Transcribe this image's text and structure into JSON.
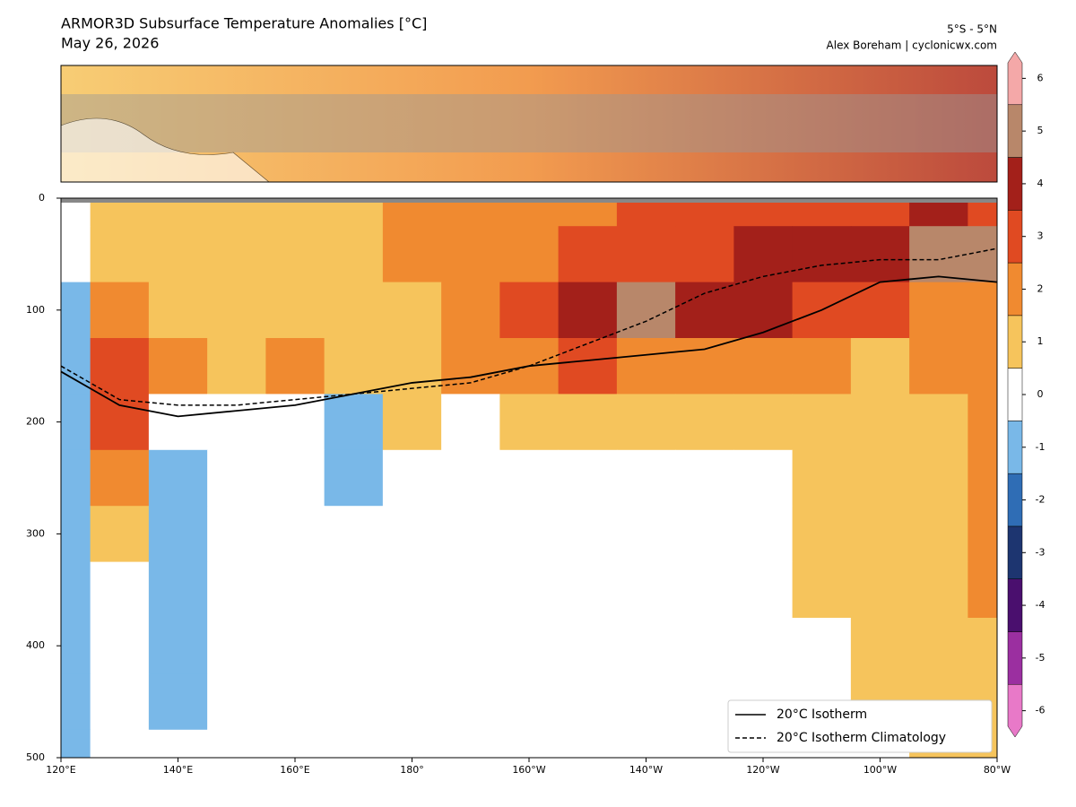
{
  "chart_data": {
    "type": "heatmap",
    "title": "ARMOR3D Subsurface Temperature Anomalies [°C]",
    "subtitle": "May 26, 2026",
    "region": "5°S - 5°N",
    "credit": "Alex Boreham | cyclonicwx.com",
    "x": [
      120,
      130,
      140,
      150,
      160,
      170,
      180,
      190,
      200,
      210,
      220,
      230,
      240,
      250,
      260,
      270,
      280
    ],
    "depths": [
      0,
      50,
      100,
      150,
      200,
      250,
      300,
      350,
      400,
      450,
      500
    ],
    "z": [
      [
        0,
        1,
        1,
        1,
        1,
        1,
        1.5,
        2,
        2,
        2,
        2.5,
        2.5,
        3,
        3,
        3,
        3.5,
        3
      ],
      [
        0,
        1,
        0.5,
        1,
        1,
        1,
        1.5,
        2,
        2,
        2.5,
        3,
        3,
        3.5,
        4,
        4,
        5,
        5
      ],
      [
        -1,
        2,
        1,
        1,
        0.5,
        1,
        1,
        2,
        3,
        4,
        5,
        4,
        3.5,
        3,
        2.5,
        2,
        2
      ],
      [
        -1,
        3,
        2,
        0.5,
        1.5,
        0.5,
        1,
        1.5,
        2,
        2.5,
        2,
        1.5,
        1.5,
        1.5,
        1,
        1.5,
        2
      ],
      [
        -1,
        3,
        -0.5,
        0,
        0,
        -1,
        0.5,
        0,
        1,
        1,
        0.5,
        0.5,
        0.5,
        0.5,
        1,
        1,
        2
      ],
      [
        -1,
        2,
        -1.5,
        0,
        0,
        -1,
        0,
        0,
        0,
        0,
        0,
        0,
        0,
        0.5,
        1,
        1,
        1.5
      ],
      [
        -1,
        1,
        -1.5,
        0,
        0,
        0,
        0,
        0,
        0,
        0,
        0,
        0,
        0,
        1,
        1,
        1,
        1.5
      ],
      [
        -1,
        0,
        -1,
        0,
        0,
        0,
        0,
        0,
        0,
        0,
        0,
        0,
        0,
        1,
        1,
        1,
        1.5
      ],
      [
        -1,
        0,
        -1,
        0,
        0,
        0,
        0,
        0,
        0,
        0,
        0,
        0,
        0,
        0,
        1,
        1,
        1
      ],
      [
        -1,
        0,
        -1,
        0,
        0,
        0,
        0,
        0,
        0,
        0,
        0,
        0,
        0,
        0,
        0.5,
        1,
        1
      ],
      [
        -1,
        0,
        0,
        0,
        0,
        0,
        0,
        0,
        0,
        0,
        0,
        0,
        0,
        0,
        0,
        1,
        1
      ]
    ],
    "series": [
      {
        "name": "20°C Isotherm",
        "color": "#000000",
        "dash": false,
        "values": [
          155,
          185,
          195,
          190,
          185,
          175,
          165,
          160,
          150,
          145,
          140,
          135,
          120,
          100,
          75,
          70,
          75
        ]
      },
      {
        "name": "20°C Isotherm Climatology",
        "color": "#000000",
        "dash": true,
        "values": [
          150,
          180,
          185,
          185,
          180,
          175,
          170,
          165,
          150,
          130,
          110,
          85,
          70,
          60,
          55,
          55,
          45
        ]
      }
    ],
    "xlim": [
      120,
      280
    ],
    "xticks": [
      {
        "value": 120,
        "label": "120°E"
      },
      {
        "value": 140,
        "label": "140°E"
      },
      {
        "value": 160,
        "label": "160°E"
      },
      {
        "value": 180,
        "label": "180°"
      },
      {
        "value": 200,
        "label": "160°W"
      },
      {
        "value": 220,
        "label": "140°W"
      },
      {
        "value": 240,
        "label": "120°W"
      },
      {
        "value": 260,
        "label": "100°W"
      },
      {
        "value": 280,
        "label": "80°W"
      }
    ],
    "ylim": [
      500,
      0
    ],
    "yticks": [
      0,
      100,
      200,
      300,
      400,
      500
    ],
    "legend": "lower right",
    "colorbar": {
      "levels": [
        -6.5,
        -5.5,
        -4.5,
        -3.5,
        -2.5,
        -1.5,
        -0.5,
        0.5,
        1.5,
        2.5,
        3.5,
        4.5,
        5.5,
        6.5
      ],
      "colors": [
        "#e879c8",
        "#9b2fa0",
        "#4a0f6e",
        "#1d3570",
        "#2f6db5",
        "#79b8e8",
        "#ffffff",
        "#f6c45c",
        "#f08a30",
        "#e04a22",
        "#a3201a",
        "#b8876a",
        "#f4a8a8"
      ],
      "ticks": [
        -6,
        -5,
        -4,
        -3,
        -2,
        -1,
        0,
        1,
        2,
        3,
        4,
        5,
        6
      ]
    }
  }
}
